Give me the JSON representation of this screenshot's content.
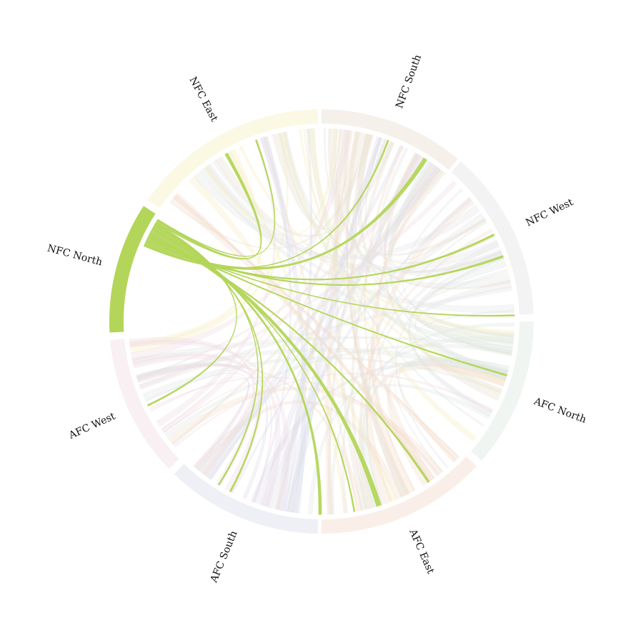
{
  "chart_data": {
    "type": "chord",
    "highlighted_group": "NFC North",
    "groups": [
      {
        "name": "NFC South",
        "color": "#e8e0d0",
        "start_deg": 0,
        "end_deg": 40
      },
      {
        "name": "NFC West",
        "color": "#e4e4e4",
        "start_deg": 41,
        "end_deg": 88
      },
      {
        "name": "AFC North",
        "color": "#dfe8e2",
        "start_deg": 90,
        "end_deg": 131
      },
      {
        "name": "AFC East",
        "color": "#f4dccc",
        "start_deg": 133,
        "end_deg": 180
      },
      {
        "name": "AFC South",
        "color": "#dcdcec",
        "start_deg": 181,
        "end_deg": 224
      },
      {
        "name": "AFC West",
        "color": "#f2dde6",
        "start_deg": 226,
        "end_deg": 265
      },
      {
        "name": "NFC North",
        "color": "#b3d65a",
        "start_deg": 267,
        "end_deg": 303
      },
      {
        "name": "NFC East",
        "color": "#f7efc4",
        "start_deg": 305,
        "end_deg": 359
      }
    ],
    "highlight_chords": [
      {
        "target": "NFC South",
        "angle_deg": 20,
        "value": 1.5
      },
      {
        "target": "NFC South",
        "angle_deg": 32,
        "value": 4
      },
      {
        "target": "NFC West",
        "angle_deg": 63,
        "value": 2
      },
      {
        "target": "NFC West",
        "angle_deg": 70,
        "value": 2
      },
      {
        "target": "NFC West",
        "angle_deg": 88,
        "value": 1
      },
      {
        "target": "AFC North",
        "angle_deg": 106,
        "value": 1.5
      },
      {
        "target": "AFC East",
        "angle_deg": 146,
        "value": 2
      },
      {
        "target": "AFC East",
        "angle_deg": 162,
        "value": 5
      },
      {
        "target": "AFC East",
        "angle_deg": 170,
        "value": 1
      },
      {
        "target": "AFC South",
        "angle_deg": 180,
        "value": 3
      },
      {
        "target": "AFC South",
        "angle_deg": 208,
        "value": 1.5
      },
      {
        "target": "AFC South",
        "angle_deg": 212,
        "value": 1
      },
      {
        "target": "AFC West",
        "angle_deg": 244,
        "value": 1.5
      },
      {
        "target": "NFC East",
        "angle_deg": 330,
        "value": 3
      },
      {
        "target": "NFC East",
        "angle_deg": 340,
        "value": 1
      }
    ]
  }
}
